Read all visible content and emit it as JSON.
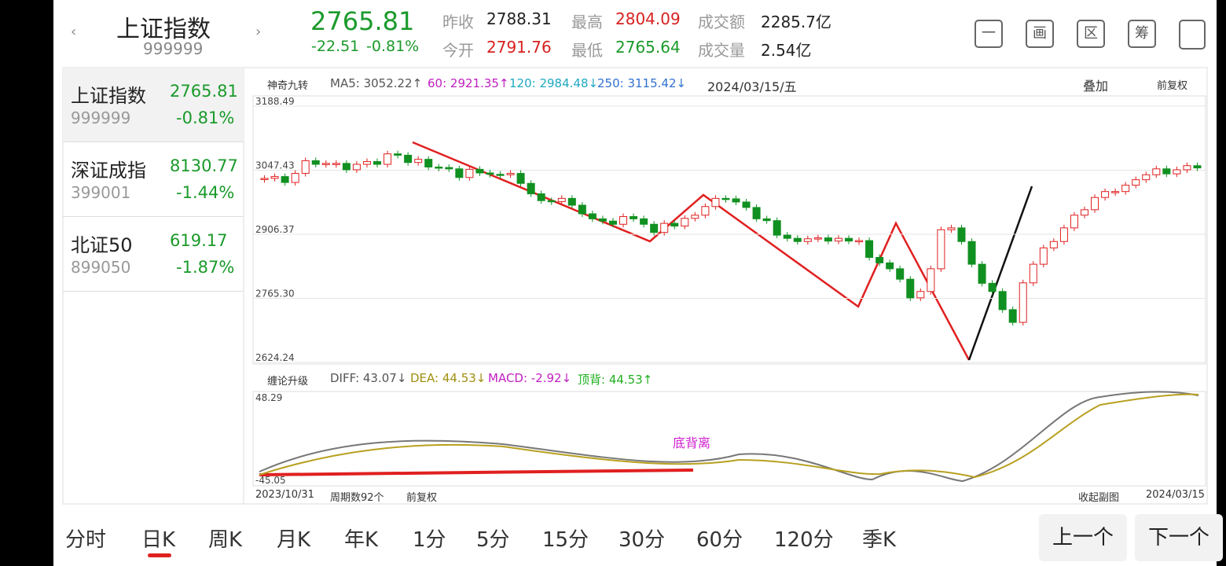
{
  "header": {
    "name": "上证指数",
    "code": "999999",
    "price": "2765.81",
    "change": "-22.51",
    "pct": "-0.81%",
    "stats": [
      {
        "label": "昨收",
        "value": "2788.31"
      },
      {
        "label": "最高",
        "value": "2804.09"
      },
      {
        "label": "成交额",
        "value": "2285.7亿"
      },
      {
        "label": "今开",
        "value": "2791.76"
      },
      {
        "label": "最低",
        "value": "2765.64"
      },
      {
        "label": "成交量",
        "value": "2.54亿"
      }
    ],
    "tools": [
      "一",
      "画",
      "区",
      "筹"
    ]
  },
  "sidebar": [
    {
      "name": "上证指数",
      "price": "2765.81",
      "code": "999999",
      "pct": "-0.81%"
    },
    {
      "name": "深证成指",
      "price": "8130.77",
      "code": "399001",
      "pct": "-1.44%"
    },
    {
      "name": "北证50",
      "price": "619.17",
      "code": "899050",
      "pct": "-1.87%"
    }
  ],
  "chart": {
    "indicator": "神奇九转",
    "ma": [
      "MA5: 3052.22↑",
      "60: 2921.35↑",
      "120: 2984.48↓",
      "250: 3115.42↓"
    ],
    "date": "2024/03/15/五",
    "overlay": "叠加",
    "adjust": "前复权",
    "ylim": [
      2624.24,
      3188.49
    ],
    "yticks": [
      3188.49,
      3047.43,
      2906.37,
      {
        "value": 2765.3,
        "label": "2765.30"
      },
      2624.24
    ],
    "closes": [
      3019,
      3023,
      3010,
      3030,
      3058,
      3050,
      3052,
      3052,
      3038,
      3050,
      3056,
      3050,
      3073,
      3070,
      3054,
      3061,
      3044,
      3043,
      3040,
      3021,
      3039,
      3031,
      3028,
      3027,
      3030,
      3008,
      2985,
      2970,
      2968,
      2975,
      2960,
      2941,
      2930,
      2925,
      2918,
      2935,
      2930,
      2918,
      2900,
      2920,
      2914,
      2931,
      2938,
      2957,
      2975,
      2974,
      2967,
      2955,
      2930,
      2926,
      2894,
      2887,
      2880,
      2886,
      2888,
      2881,
      2887,
      2881,
      2882,
      2845,
      2833,
      2820,
      2797,
      2756,
      2770,
      2820,
      2906,
      2910,
      2880,
      2830,
      2788,
      2770,
      2730,
      2702,
      2789,
      2830,
      2866,
      2880,
      2910,
      2938,
      2950,
      2977,
      2990,
      2990,
      3004,
      3016,
      3027,
      3040,
      3029,
      3038,
      3047,
      3042
    ],
    "macd_name": "缠论升级",
    "macd": [
      "DIFF: 43.07↓",
      "DEA: 44.53↓",
      "MACD: -2.92↓",
      "顶背: 44.53↑"
    ],
    "macd_ticks": [
      "48.29",
      "-45.05"
    ],
    "annotation": "底背离",
    "footer": [
      "2023/10/31",
      "周期数92个",
      "前复权",
      "收起副图",
      "2024/03/15"
    ]
  },
  "tabs": [
    "分时",
    "日K",
    "周K",
    "月K",
    "年K",
    "1分",
    "5分",
    "15分",
    "30分",
    "60分",
    "120分",
    "季K"
  ],
  "selected_tab": 1,
  "buttons": [
    "上一个",
    "下一个"
  ]
}
